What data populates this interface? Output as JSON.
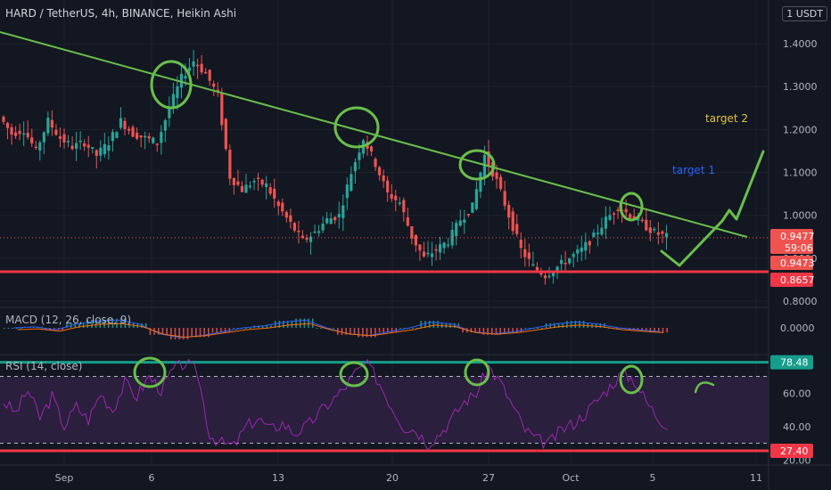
{
  "header": {
    "symbol_title": "HARD / TetherUS, 4h, BINANCE, Heikin Ashi",
    "currency": "USDT",
    "currency_prefix": "1"
  },
  "colors": {
    "background": "#131722",
    "up_candle": "#26a69a",
    "down_candle": "#ef5350",
    "trendline": "#6abf4b",
    "annotation": "#6abf4b",
    "support_line": "#f23645",
    "rsi_line": "#9c27b0",
    "rsi_band": "#2a1f3d",
    "rsi_top_line": "#159e8b",
    "macd_line": "#2962ff",
    "signal_line": "#ff6d00",
    "target1": "#2962ff",
    "target2": "#e0c341"
  },
  "chart_data": [
    {
      "type": "candlestick",
      "panel": "price",
      "title": "HARD / TetherUS, 4h, BINANCE, Heikin Ashi",
      "x_ticks": [
        "Sep",
        "6",
        "13",
        "20",
        "27",
        "Oct",
        "5",
        "11"
      ],
      "y_ticks": [
        "1.4000",
        "1.3000",
        "1.2000",
        "1.1000",
        "1.0000",
        "0.9000",
        "0.8000"
      ],
      "ylim": [
        0.8,
        1.45
      ],
      "price_path": [
        1.23,
        1.19,
        1.2,
        1.15,
        1.22,
        1.18,
        1.16,
        1.17,
        1.14,
        1.17,
        1.22,
        1.19,
        1.18,
        1.17,
        1.25,
        1.32,
        1.36,
        1.33,
        1.28,
        1.09,
        1.06,
        1.08,
        1.07,
        1.02,
        0.98,
        0.94,
        0.96,
        0.99,
        1.0,
        1.1,
        1.18,
        1.12,
        1.05,
        1.03,
        0.95,
        0.9,
        0.92,
        0.94,
        0.99,
        1.02,
        1.14,
        1.08,
        1.0,
        0.92,
        0.88,
        0.86,
        0.88,
        0.9,
        0.92,
        0.95,
        0.99,
        1.02,
        1.0,
        0.98,
        0.96,
        0.95
      ],
      "annotations": [
        "target 2",
        "target 1"
      ],
      "price_labels": [
        {
          "value": "0.9477",
          "countdown": "59:06"
        },
        {
          "value": "0.9473"
        },
        {
          "value": "0.8657"
        }
      ],
      "support_level": 0.8657,
      "last_price": 0.9477
    },
    {
      "type": "bar",
      "panel": "macd",
      "label": "MACD (12, 26, close, 9)",
      "y_ticks": [
        "0.0000"
      ],
      "histogram": [
        0.0,
        0.005,
        -0.01,
        0.02,
        0.035,
        0.04,
        0.02,
        -0.03,
        -0.05,
        -0.04,
        -0.02,
        0.0,
        0.01,
        0.03,
        0.04,
        0.0,
        -0.03,
        -0.04,
        -0.02,
        0.0,
        0.03,
        0.02,
        -0.02,
        -0.03,
        -0.02,
        0.0,
        0.02,
        0.03,
        0.02,
        0.0,
        -0.01,
        -0.02
      ]
    },
    {
      "type": "line",
      "panel": "rsi",
      "label": "RSI (14, close)",
      "y_ticks": [
        "60.00",
        "40.00",
        "20.00"
      ],
      "values": [
        55,
        48,
        62,
        45,
        58,
        40,
        52,
        44,
        60,
        50,
        66,
        58,
        70,
        62,
        74,
        78,
        72,
        35,
        30,
        28,
        40,
        45,
        38,
        42,
        36,
        40,
        48,
        55,
        62,
        72,
        78,
        66,
        52,
        40,
        38,
        30,
        36,
        45,
        55,
        60,
        76,
        66,
        52,
        38,
        32,
        30,
        38,
        42,
        48,
        56,
        64,
        72,
        68,
        55,
        45,
        40
      ],
      "overbought": 70,
      "oversold": 30,
      "level_labels": [
        "78.48",
        "27.40"
      ]
    }
  ]
}
